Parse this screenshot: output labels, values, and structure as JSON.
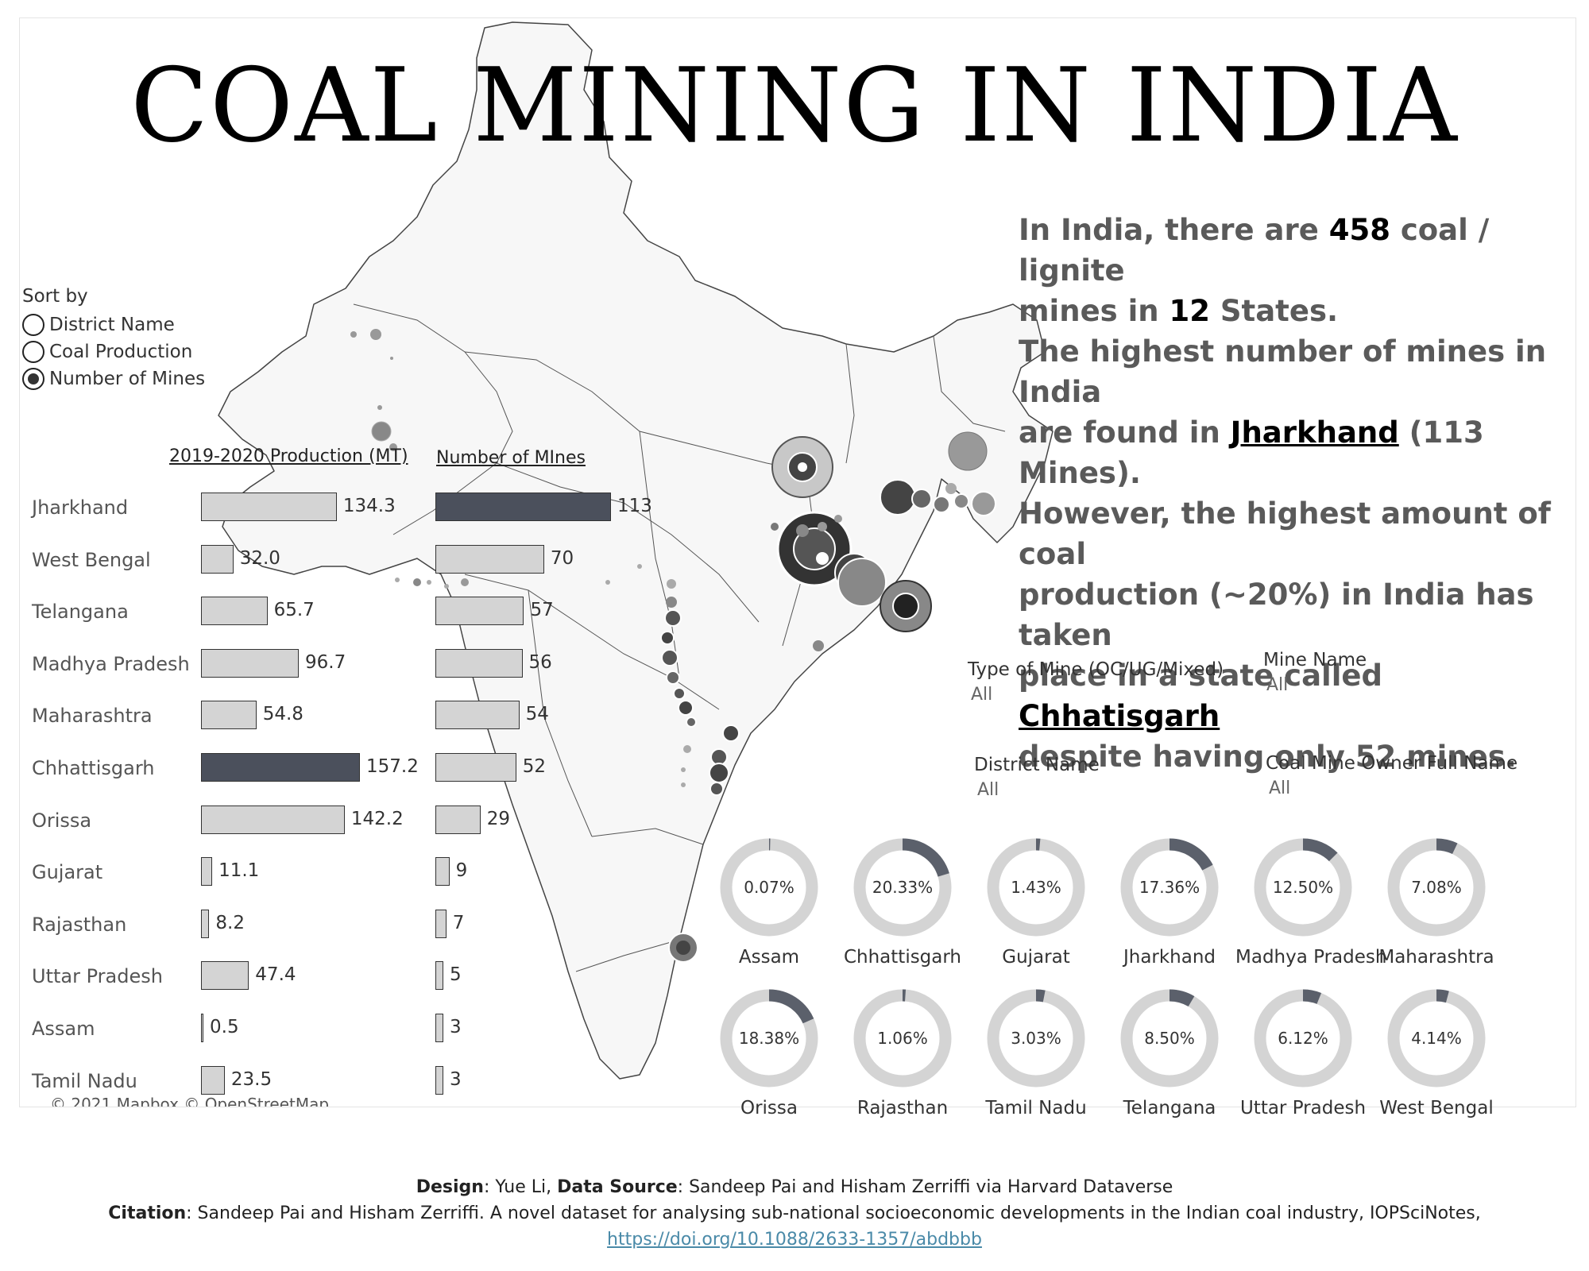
{
  "title": "COAL MINING IN INDIA",
  "summary": {
    "l1a": "In India, there are ",
    "mines_total": "458",
    "l1b": " coal / lignite",
    "l2a": "mines in ",
    "states_total": "12",
    "l2b": " States.",
    "l3": "The highest number of mines in India",
    "l4a": "are found in ",
    "top_mines_state": "Jharkhand",
    "l4b": " (113 Mines).",
    "l5": "However, the highest amount of coal",
    "l6": "production (~20%) in India has taken",
    "l7a": "place in a state called ",
    "top_prod_state": "Chhatisgarh",
    "l8": "despite having only 52 mines."
  },
  "sort": {
    "label": "Sort by",
    "options": [
      {
        "label": "District Name",
        "selected": false
      },
      {
        "label": "Coal Production",
        "selected": false
      },
      {
        "label": "Number of Mines",
        "selected": true
      }
    ]
  },
  "colors": {
    "bar": "#d4d4d4",
    "highlight": "#4b505c",
    "map_fill": "#f7f7f7",
    "map_border": "#444444",
    "donut_track": "#d4d4d4",
    "donut_fill": "#5b606b"
  },
  "chart_data": [
    {
      "type": "bar",
      "title": "2019-2020 Production (MT)",
      "categories": [
        "Jharkhand",
        "West Bengal",
        "Telangana",
        "Madhya Pradesh",
        "Maharashtra",
        "Chhattisgarh",
        "Orissa",
        "Gujarat",
        "Rajasthan",
        "Uttar Pradesh",
        "Assam",
        "Tamil Nadu"
      ],
      "values": [
        134.3,
        32.0,
        65.7,
        96.7,
        54.8,
        157.2,
        142.2,
        11.1,
        8.2,
        47.4,
        0.5,
        23.5
      ],
      "labels": [
        "134.3",
        "32.0",
        "65.7",
        "96.7",
        "54.8",
        "157.2",
        "142.2",
        "11.1",
        "8.2",
        "47.4",
        "0.5",
        "23.5"
      ],
      "highlight": "Chhattisgarh"
    },
    {
      "type": "bar",
      "title": "Number of MInes",
      "categories": [
        "Jharkhand",
        "West Bengal",
        "Telangana",
        "Madhya Pradesh",
        "Maharashtra",
        "Chhattisgarh",
        "Orissa",
        "Gujarat",
        "Rajasthan",
        "Uttar Pradesh",
        "Assam",
        "Tamil Nadu"
      ],
      "values": [
        113,
        70,
        57,
        56,
        54,
        52,
        29,
        9,
        7,
        5,
        3,
        3
      ],
      "labels": [
        "113",
        "70",
        "57",
        "56",
        "54",
        "52",
        "29",
        "9",
        "7",
        "5",
        "3",
        "3"
      ],
      "highlight": "Jharkhand"
    },
    {
      "type": "pie",
      "title": "",
      "categories": [
        "Assam",
        "Chhattisgarh",
        "Gujarat",
        "Jharkhand",
        "Madhya Pradesh",
        "Maharashtra",
        "Orissa",
        "Rajasthan",
        "Tamil Nadu",
        "Telangana",
        "Uttar Pradesh",
        "West Bengal"
      ],
      "values": [
        0.07,
        20.33,
        1.43,
        17.36,
        12.5,
        7.08,
        18.38,
        1.06,
        3.03,
        8.5,
        6.12,
        4.14
      ],
      "labels": [
        "0.07%",
        "20.33%",
        "1.43%",
        "17.36%",
        "12.50%",
        "7.08%",
        "18.38%",
        "1.06%",
        "3.03%",
        "8.50%",
        "6.12%",
        "4.14%"
      ]
    }
  ],
  "filters": [
    {
      "label": "Type of Mine (OC/UG/Mixed)",
      "value": "All"
    },
    {
      "label": "Mine Name",
      "value": "All"
    },
    {
      "label": "District Name",
      "value": "All"
    },
    {
      "label": "Coal Mine Owner Full Name",
      "value": "All"
    }
  ],
  "map_credit": "© 2021 Mapbox © OpenStreetMap",
  "footer": {
    "design_label": "Design",
    "design_text": ": Yue Li, ",
    "source_label": "Data Source",
    "source_text": ": Sandeep Pai and Hisham Zerriffi via Harvard Dataverse",
    "citation_label": "Citation",
    "citation_text": ": Sandeep Pai and Hisham Zerriffi. A novel dataset for analysing sub-national socioeconomic developments in the Indian coal industry, IOPSciNotes,",
    "link": "https://doi.org/10.1088/2633-1357/abdbbb"
  }
}
